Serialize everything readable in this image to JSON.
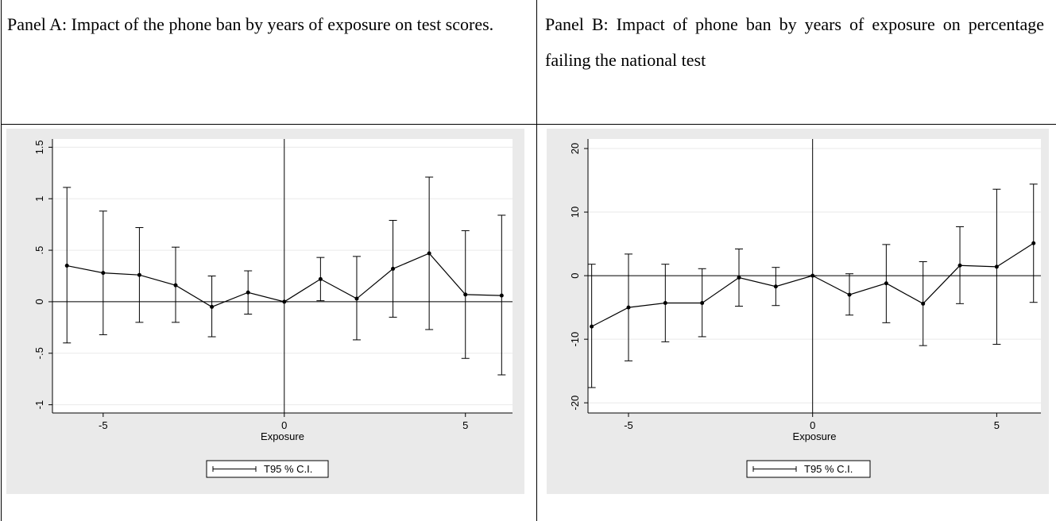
{
  "table": {
    "headers": [
      "Panel A: Impact of the phone ban by years of exposure on test scores.",
      "Panel B: Impact of phone ban by years of exposure on percentage failing the national test"
    ]
  },
  "chart_data": [
    {
      "type": "line",
      "x_label": "Exposure",
      "legend": "T95 % C.I.",
      "color": "#000000",
      "grid": true,
      "xline": 0,
      "yline": 0,
      "x": [
        -6,
        -5,
        -4,
        -3,
        -2,
        -1,
        0,
        1,
        2,
        3,
        4,
        5,
        6
      ],
      "values": [
        0.35,
        0.28,
        0.26,
        0.16,
        -0.05,
        0.09,
        0,
        0.22,
        0.03,
        0.32,
        0.47,
        0.07,
        0.06
      ],
      "lower": [
        -0.4,
        -0.32,
        -0.2,
        -0.2,
        -0.34,
        -0.12,
        0,
        0.01,
        -0.37,
        -0.15,
        -0.27,
        -0.55,
        -0.71
      ],
      "upper": [
        1.11,
        0.88,
        0.72,
        0.53,
        0.25,
        0.3,
        0,
        0.43,
        0.44,
        0.79,
        1.21,
        0.69,
        0.84
      ],
      "xlim": [
        -6.4,
        6.3
      ],
      "xticks": [
        -5,
        0,
        5
      ],
      "ylim": [
        -1.08,
        1.58
      ],
      "yticks": [
        -1,
        {
          "value": -0.5,
          "label": "-.5"
        },
        0,
        {
          "value": 0.5,
          "label": ".5"
        },
        1,
        1.5
      ]
    },
    {
      "type": "line",
      "x_label": "Exposure",
      "legend": "T95 % C.I.",
      "color": "#000000",
      "grid": true,
      "xline": 0,
      "yline": 0,
      "x": [
        -6,
        -5,
        -4,
        -3,
        -2,
        -1,
        0,
        1,
        2,
        3,
        4,
        5,
        6
      ],
      "values": [
        -8.0,
        -5.0,
        -4.3,
        -4.3,
        -0.3,
        -1.7,
        0,
        -3.0,
        -1.2,
        -4.4,
        1.6,
        1.4,
        5.1
      ],
      "lower": [
        -17.6,
        -13.4,
        -10.4,
        -9.6,
        -4.8,
        -4.7,
        0,
        -6.2,
        -7.4,
        -11.0,
        -4.4,
        -10.8,
        -4.2
      ],
      "upper": [
        1.8,
        3.4,
        1.8,
        1.1,
        4.2,
        1.3,
        0,
        0.3,
        4.9,
        2.2,
        7.7,
        13.6,
        14.4
      ],
      "xlim": [
        -6.1,
        6.2
      ],
      "xticks": [
        -5,
        0,
        5
      ],
      "ylim": [
        -21.6,
        21.5
      ],
      "yticks": [
        -20,
        -10,
        0,
        10,
        20
      ]
    }
  ]
}
